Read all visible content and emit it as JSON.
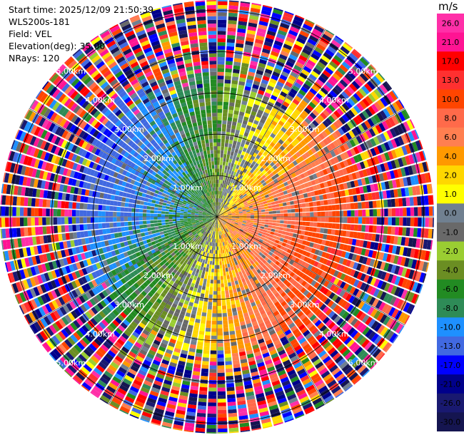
{
  "header": {
    "start_time": "Start time: 2025/12/09 21:50:39",
    "instrument": "WLS200s-181",
    "field": "Field: VEL",
    "elevation": "Elevation(deg): 35.00",
    "nrays": "NRays: 120"
  },
  "chart_data": {
    "type": "heatmap",
    "projection": "polar-ppi",
    "field": "VEL",
    "nrays": 120,
    "range_rings_km": [
      1.0,
      2.0,
      3.0,
      4.0,
      5.0
    ],
    "range_ring_labels": [
      "1.00km",
      "2.00km",
      "3.00km",
      "4.00km",
      "5.00km"
    ],
    "max_range_km": 5.25,
    "colorbar": {
      "unit": "m/s",
      "ticks": [
        "26.0",
        "21.0",
        "17.0",
        "13.0",
        "10.0",
        "8.0",
        "6.0",
        "4.0",
        "2.0",
        "1.0",
        "0.0",
        "-1.0",
        "-2.0",
        "-4.0",
        "-6.0",
        "-8.0",
        "-10.0",
        "-13.0",
        "-17.0",
        "-21.0",
        "-26.0",
        "-30.0"
      ],
      "colors": [
        "#ff2fa8",
        "#ff1493",
        "#ff0000",
        "#ff3030",
        "#ff4500",
        "#ff6a4a",
        "#ff7f50",
        "#ff9900",
        "#ffd700",
        "#ffff00",
        "#708090",
        "#696969",
        "#9acd32",
        "#6b8e23",
        "#228b22",
        "#2e8b57",
        "#1e90ff",
        "#4169e1",
        "#0000ff",
        "#00008b",
        "#191970",
        "#151550"
      ]
    },
    "velocity_pattern": {
      "inner_dominant": "negative (blue/green) toward west, positive (orange/red) toward east-southeast",
      "outer_range": "noisy mixed values"
    }
  }
}
